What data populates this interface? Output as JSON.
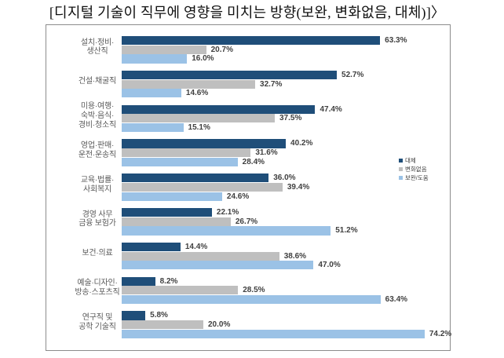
{
  "title": "[디지털 기술이 직무에 영향을 미치는 방향(보완, 변화없음, 대체)]〉",
  "colors": {
    "replace_bar": "#1F4E79",
    "no_change_bar": "#BFBFBF",
    "complement_bar": "#9BC2E6",
    "chart_border": "#8C8C8C",
    "value_label_text": "#404040",
    "category_label_text": "#595959",
    "title_text": "#111111"
  },
  "legend": {
    "items": [
      {
        "label": "대체",
        "swatch": "replace-swatch"
      },
      {
        "label": "변화없음",
        "swatch": "no-change-swatch"
      },
      {
        "label": "보완/도움",
        "swatch": "complement-swatch"
      }
    ]
  },
  "chart_data": {
    "type": "bar",
    "orientation": "horizontal",
    "title": "[디지털 기술이 직무에 영향을 미치는 방향(보완, 변화없음, 대체)]〉",
    "categories": [
      [
        "설치·정비·",
        "생산직"
      ],
      [
        "건설·채굴직"
      ],
      [
        "미용·여행·",
        "숙박·음식·",
        "경비·청소직"
      ],
      [
        "영업·판매·",
        "운전·운송직"
      ],
      [
        "교육·법률·",
        "사회복지"
      ],
      [
        "경영 사무",
        "금융 보험가"
      ],
      [
        "보건·의료"
      ],
      [
        "예술·디자인·",
        "방송·스포츠직"
      ],
      [
        "연구직 및",
        "공학 기술직"
      ]
    ],
    "series": [
      {
        "name": "대체",
        "color": "#1F4E79",
        "values": [
          63.3,
          52.7,
          47.4,
          40.2,
          36.0,
          22.1,
          14.4,
          8.2,
          5.8
        ]
      },
      {
        "name": "변화없음",
        "color": "#BFBFBF",
        "values": [
          20.7,
          32.7,
          37.5,
          31.6,
          39.4,
          26.7,
          38.6,
          28.5,
          20.0
        ]
      },
      {
        "name": "보완/도움",
        "color": "#9BC2E6",
        "values": [
          16.0,
          14.6,
          15.1,
          28.4,
          24.6,
          51.2,
          47.0,
          63.4,
          74.2
        ]
      }
    ],
    "value_suffix": "%",
    "value_decimals": 1,
    "xlim": [
      0,
      80
    ],
    "xlabel": "",
    "ylabel": "",
    "grid": false,
    "axis_lines": false,
    "data_labels": true,
    "legend_position": "right-inside"
  }
}
